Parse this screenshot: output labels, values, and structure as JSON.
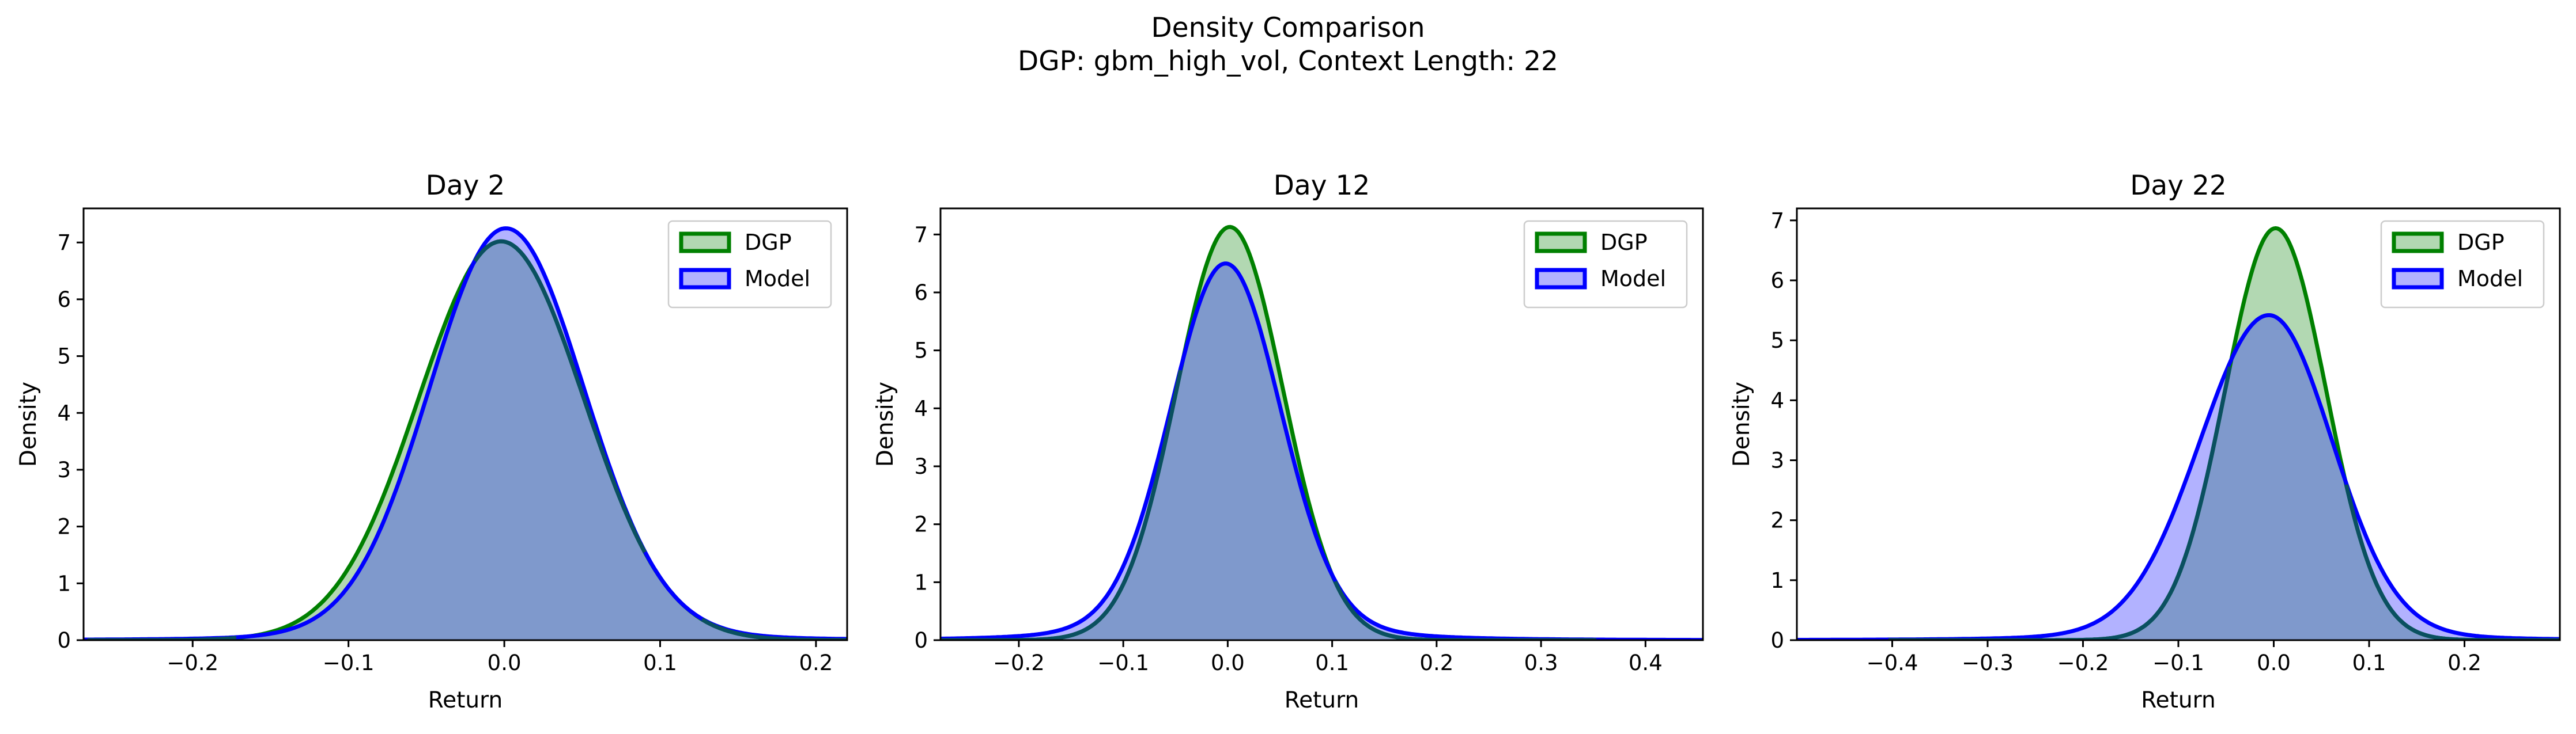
{
  "figure": {
    "suptitle_line1": "Density Comparison",
    "suptitle_line2": "DGP: gbm_high_vol, Context Length: 22"
  },
  "colors": {
    "dgp_line": "#008000",
    "dgp_fill": "#b2d8b2",
    "model_line": "#0000ff",
    "model_fill": "#b2b2ff",
    "overlap_fill": "#7f99cc"
  },
  "chart_data": [
    {
      "type": "area",
      "title": "Day 2",
      "xlabel": "Return",
      "ylabel": "Density",
      "xlim": [
        -0.27,
        0.22
      ],
      "ylim": [
        0,
        7.6
      ],
      "xticks": [
        -0.2,
        -0.1,
        0.0,
        0.1,
        0.2
      ],
      "xtick_labels": [
        "−0.2",
        "−0.1",
        "0.0",
        "0.1",
        "0.2"
      ],
      "yticks": [
        0,
        1,
        2,
        3,
        4,
        5,
        6,
        7
      ],
      "ytick_labels": [
        "0",
        "1",
        "2",
        "3",
        "4",
        "5",
        "6",
        "7"
      ],
      "legend": {
        "position": "upper right",
        "entries": [
          "DGP",
          "Model"
        ]
      },
      "series": [
        {
          "name": "DGP",
          "peak_x": -0.002,
          "peak_y": 7.02,
          "sd_left": 0.053,
          "sd_right": 0.053,
          "tail": 0.0
        },
        {
          "name": "Model",
          "peak_x": 0.001,
          "peak_y": 7.25,
          "sd_left": 0.049,
          "sd_right": 0.05,
          "tail": 0.05
        }
      ]
    },
    {
      "type": "area",
      "title": "Day 12",
      "xlabel": "Return",
      "ylabel": "Density",
      "xlim": [
        -0.275,
        0.455
      ],
      "ylim": [
        0,
        7.45
      ],
      "xticks": [
        -0.2,
        -0.1,
        0.0,
        0.1,
        0.2,
        0.3,
        0.4
      ],
      "xtick_labels": [
        "−0.2",
        "−0.1",
        "0.0",
        "0.1",
        "0.2",
        "0.3",
        "0.4"
      ],
      "yticks": [
        0,
        1,
        2,
        3,
        4,
        5,
        6,
        7
      ],
      "ytick_labels": [
        "0",
        "1",
        "2",
        "3",
        "4",
        "5",
        "6",
        "7"
      ],
      "legend": {
        "position": "upper right",
        "entries": [
          "DGP",
          "Model"
        ]
      },
      "series": [
        {
          "name": "DGP",
          "peak_x": 0.002,
          "peak_y": 7.13,
          "sd_left": 0.051,
          "sd_right": 0.051,
          "tail": 0.0
        },
        {
          "name": "Model",
          "peak_x": -0.002,
          "peak_y": 6.5,
          "sd_left": 0.052,
          "sd_right": 0.052,
          "tail": 0.12
        }
      ]
    },
    {
      "type": "area",
      "title": "Day 22",
      "xlabel": "Return",
      "ylabel": "Density",
      "xlim": [
        -0.5,
        0.3
      ],
      "ylim": [
        0,
        7.2
      ],
      "xticks": [
        -0.4,
        -0.3,
        -0.2,
        -0.1,
        0.0,
        0.1,
        0.2
      ],
      "xtick_labels": [
        "−0.4",
        "−0.3",
        "−0.2",
        "−0.1",
        "0.0",
        "0.1",
        "0.2"
      ],
      "yticks": [
        0,
        1,
        2,
        3,
        4,
        5,
        6,
        7
      ],
      "ytick_labels": [
        "0",
        "1",
        "2",
        "3",
        "4",
        "5",
        "6",
        "7"
      ],
      "legend": {
        "position": "upper right",
        "entries": [
          "DGP",
          "Model"
        ]
      },
      "series": [
        {
          "name": "DGP",
          "peak_x": 0.002,
          "peak_y": 6.87,
          "sd_left": 0.053,
          "sd_right": 0.053,
          "tail": 0.0
        },
        {
          "name": "Model",
          "peak_x": -0.005,
          "peak_y": 5.42,
          "sd_left": 0.072,
          "sd_right": 0.066,
          "tail": 0.07
        }
      ]
    }
  ]
}
